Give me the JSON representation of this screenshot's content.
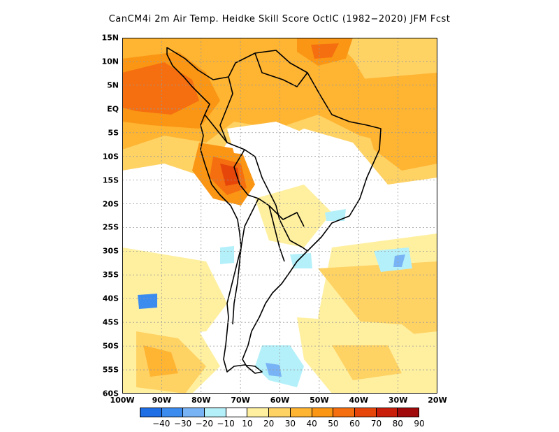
{
  "title": "CanCM4i  2m Air Temp. Heidke Skill Score OctIC (1982−2020) JFM Fcst",
  "map": {
    "lat_labels": [
      "15N",
      "10N",
      "5N",
      "EQ",
      "5S",
      "10S",
      "15S",
      "20S",
      "25S",
      "30S",
      "35S",
      "40S",
      "45S",
      "50S",
      "55S",
      "60S"
    ],
    "lon_labels": [
      "100W",
      "90W",
      "80W",
      "70W",
      "60W",
      "50W",
      "40W",
      "30W",
      "20W"
    ],
    "lat_range": [
      -60,
      15
    ],
    "lon_range": [
      -100,
      -20
    ],
    "grid": true
  },
  "colorbar": {
    "labels": [
      "−40",
      "−30",
      "−20",
      "−10",
      "10",
      "20",
      "30",
      "40",
      "50",
      "60",
      "70",
      "80",
      "90"
    ],
    "colors": [
      "#1e6ee6",
      "#3c8cf0",
      "#78b4f5",
      "#b4f0fa",
      "#ffffff",
      "#fff0a0",
      "#ffd264",
      "#ffb432",
      "#fa9614",
      "#f56e0f",
      "#e6460a",
      "#c81e0a",
      "#a00a0a"
    ]
  }
}
